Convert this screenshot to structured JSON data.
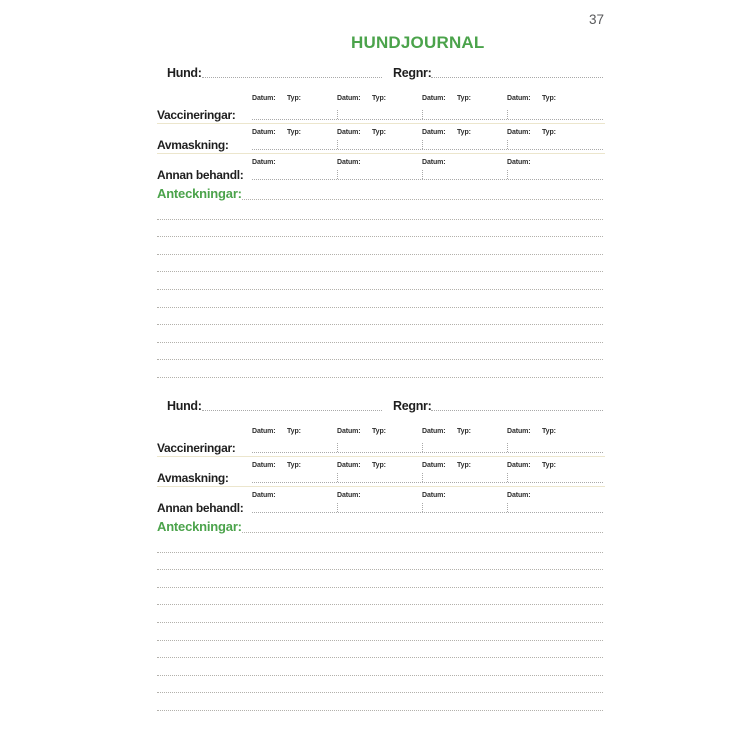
{
  "page": {
    "number": "37",
    "title": "HUNDJOURNAL"
  },
  "labels": {
    "hund": "Hund:",
    "regnr": "Regnr:",
    "vaccineringar": "Vaccineringar:",
    "avmaskning": "Avmaskning:",
    "annan_behandl": "Annan behandl:",
    "anteckningar": "Anteckningar:",
    "datum": "Datum:",
    "typ": "Typ:"
  },
  "colors": {
    "accent_green": "#4ba34b",
    "rule_beige": "#ece6cd",
    "dotted_line_gray": "#a9a9a9",
    "page_number_gray": "#58595b"
  }
}
